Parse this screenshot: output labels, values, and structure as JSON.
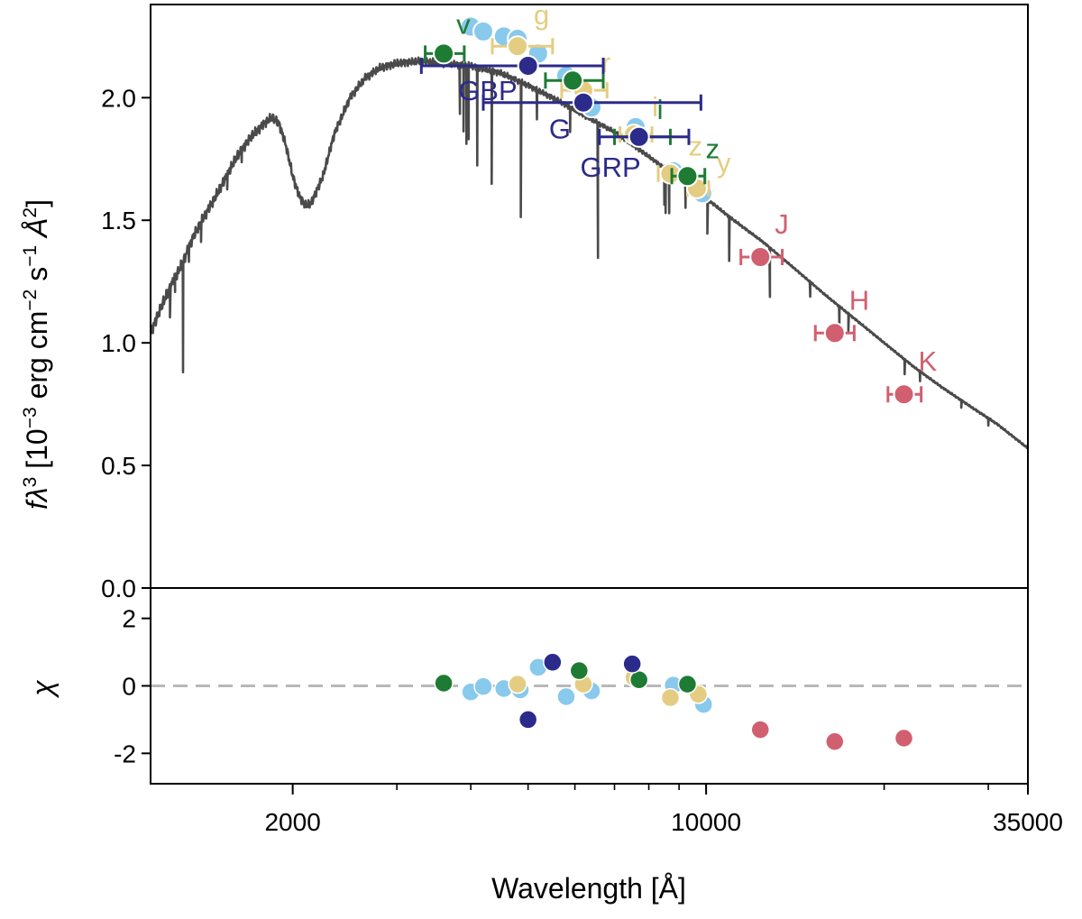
{
  "chart_data": [
    {
      "panel": "main",
      "type": "scatter",
      "ylabel_prefix": "fλ",
      "ylabel_exp": "3",
      "ylabel_mid1": " [10",
      "ylabel_exp2": "−3",
      "ylabel_mid2": " erg cm",
      "ylabel_exp3": "−2",
      "ylabel_mid3": " s",
      "ylabel_exp4": "−1",
      "ylabel_mid4": " Å",
      "ylabel_exp5": "2",
      "ylabel_end": "]",
      "xlabel": "",
      "xscale": "log",
      "xlim": [
        1150,
        35000
      ],
      "ylim": [
        0.0,
        2.38
      ],
      "yticks": [
        "0.0",
        "0.5",
        "1.0",
        "1.5",
        "2.0"
      ],
      "ytick_values": [
        0.0,
        0.5,
        1.0,
        1.5,
        2.0
      ],
      "model_spectrum": {
        "color": "#4a4a4a",
        "continuum": [
          [
            1150,
            1.04
          ],
          [
            1200,
            1.15
          ],
          [
            1260,
            1.26
          ],
          [
            1300,
            1.32
          ],
          [
            1350,
            1.42
          ],
          [
            1420,
            1.52
          ],
          [
            1500,
            1.62
          ],
          [
            1600,
            1.75
          ],
          [
            1700,
            1.84
          ],
          [
            1800,
            1.9
          ],
          [
            1850,
            1.92
          ],
          [
            1900,
            1.89
          ],
          [
            1950,
            1.8
          ],
          [
            2000,
            1.68
          ],
          [
            2050,
            1.6
          ],
          [
            2100,
            1.56
          ],
          [
            2150,
            1.57
          ],
          [
            2250,
            1.68
          ],
          [
            2350,
            1.85
          ],
          [
            2500,
            2.0
          ],
          [
            2650,
            2.08
          ],
          [
            2800,
            2.12
          ],
          [
            3000,
            2.14
          ],
          [
            3300,
            2.15
          ],
          [
            3600,
            2.14
          ],
          [
            4000,
            2.13
          ],
          [
            4500,
            2.1
          ],
          [
            5000,
            2.05
          ],
          [
            5600,
            1.99
          ],
          [
            6300,
            1.92
          ],
          [
            7000,
            1.86
          ],
          [
            8000,
            1.76
          ],
          [
            9000,
            1.67
          ],
          [
            10000,
            1.59
          ],
          [
            11000,
            1.51
          ],
          [
            12500,
            1.41
          ],
          [
            14000,
            1.31
          ],
          [
            16000,
            1.19
          ],
          [
            18000,
            1.09
          ],
          [
            20000,
            1.0
          ],
          [
            22500,
            0.9
          ],
          [
            25000,
            0.82
          ],
          [
            28000,
            0.74
          ],
          [
            31000,
            0.67
          ],
          [
            35000,
            0.57
          ]
        ],
        "absorption_lines": [
          [
            1240,
            0.12
          ],
          [
            1265,
            0.06
          ],
          [
            1305,
            0.45
          ],
          [
            1335,
            0.06
          ],
          [
            1400,
            0.08
          ],
          [
            1550,
            0.06
          ],
          [
            1640,
            0.05
          ],
          [
            3835,
            0.2
          ],
          [
            3889,
            0.27
          ],
          [
            3933,
            0.32
          ],
          [
            3968,
            0.3
          ],
          [
            4102,
            0.4
          ],
          [
            4340,
            0.46
          ],
          [
            4861,
            0.55
          ],
          [
            5175,
            0.12
          ],
          [
            5890,
            0.1
          ],
          [
            6563,
            0.55
          ],
          [
            8498,
            0.15
          ],
          [
            8542,
            0.18
          ],
          [
            8662,
            0.17
          ],
          [
            9230,
            0.1
          ],
          [
            10050,
            0.14
          ],
          [
            10940,
            0.18
          ],
          [
            12820,
            0.2
          ],
          [
            15000,
            0.06
          ],
          [
            16800,
            0.08
          ],
          [
            17400,
            0.07
          ],
          [
            21660,
            0.06
          ],
          [
            23000,
            0.04
          ],
          [
            27000,
            0.03
          ],
          [
            30000,
            0.03
          ]
        ]
      },
      "series": [
        {
          "color": "#88c9ec",
          "points": [
            {
              "x": 4000,
              "y": 2.29
            },
            {
              "x": 4200,
              "y": 2.27
            },
            {
              "x": 4550,
              "y": 2.25
            },
            {
              "x": 4800,
              "y": 2.24
            },
            {
              "x": 5200,
              "y": 2.18
            },
            {
              "x": 5800,
              "y": 2.09
            },
            {
              "x": 6400,
              "y": 1.96
            },
            {
              "x": 7600,
              "y": 1.88
            },
            {
              "x": 8800,
              "y": 1.7
            },
            {
              "x": 9850,
              "y": 1.61
            }
          ]
        },
        {
          "color": "#e4cd82",
          "points": [
            {
              "x": 4800,
              "y": 2.21,
              "xerr": [
                450,
                700
              ],
              "label": "g"
            },
            {
              "x": 6200,
              "y": 2.03,
              "xerr": [
                500,
                600
              ],
              "label": "r"
            },
            {
              "x": 7550,
              "y": 1.85,
              "xerr": [
                400,
                550
              ],
              "label": "i"
            },
            {
              "x": 8700,
              "y": 1.69,
              "xerr": [
                400,
                500
              ],
              "label": "z"
            },
            {
              "x": 9650,
              "y": 1.63,
              "xerr": [
                350,
                450
              ],
              "label": "y"
            }
          ]
        },
        {
          "color": "#1e7b34",
          "points": [
            {
              "x": 3600,
              "y": 2.18,
              "xerr": [
                250,
                300
              ],
              "label": "v"
            },
            {
              "x": 5950,
              "y": 2.07,
              "xerr": [
                600,
                750
              ]
            },
            {
              "x": 7700,
              "y": 1.84,
              "xerr": [
                700,
                1000
              ],
              "label": "i"
            },
            {
              "x": 9300,
              "y": 1.68,
              "xerr": [
                550,
                650
              ],
              "label": "z"
            }
          ]
        },
        {
          "color": "#2c2a8a",
          "points": [
            {
              "x": 5000,
              "y": 2.13,
              "xerr": [
                1700,
                1700
              ],
              "label": "GBP"
            },
            {
              "x": 6200,
              "y": 1.98,
              "xerr": [
                2000,
                3600
              ],
              "label": "G"
            },
            {
              "x": 7700,
              "y": 1.84,
              "xerr": [
                1100,
                1650
              ],
              "label": "GRP"
            }
          ]
        },
        {
          "color": "#d06070",
          "points": [
            {
              "x": 12350,
              "y": 1.35,
              "xerr": [
                900,
                1100
              ],
              "label": "J"
            },
            {
              "x": 16500,
              "y": 1.04,
              "xerr": [
                1200,
                1300
              ],
              "label": "H"
            },
            {
              "x": 21600,
              "y": 0.79,
              "xerr": [
                1300,
                1500
              ],
              "label": "K"
            }
          ]
        }
      ]
    },
    {
      "panel": "residuals",
      "type": "scatter",
      "ylabel": "χ",
      "xlabel": "Wavelength [Å]",
      "xscale": "log",
      "xlim": [
        1150,
        35000
      ],
      "ylim": [
        -2.9,
        2.9
      ],
      "yticks": [
        "2",
        "0",
        "-2"
      ],
      "ytick_values": [
        2,
        0,
        -2
      ],
      "xticks": [
        "2000",
        "10000",
        "35000"
      ],
      "xtick_values": [
        2000,
        10000,
        35000
      ],
      "zero_line": true,
      "series": [
        {
          "color": "#88c9ec",
          "points": [
            {
              "x": 4000,
              "y": -0.18
            },
            {
              "x": 4200,
              "y": -0.02
            },
            {
              "x": 4550,
              "y": -0.08
            },
            {
              "x": 4850,
              "y": -0.12
            },
            {
              "x": 5200,
              "y": 0.55
            },
            {
              "x": 5800,
              "y": -0.32
            },
            {
              "x": 6400,
              "y": -0.15
            },
            {
              "x": 7600,
              "y": 0.22
            },
            {
              "x": 8800,
              "y": 0.02
            },
            {
              "x": 9900,
              "y": -0.55
            }
          ]
        },
        {
          "color": "#e4cd82",
          "points": [
            {
              "x": 4800,
              "y": 0.05
            },
            {
              "x": 6200,
              "y": 0.05
            },
            {
              "x": 7550,
              "y": 0.25
            },
            {
              "x": 8700,
              "y": -0.35
            },
            {
              "x": 9700,
              "y": -0.25
            }
          ]
        },
        {
          "color": "#1e7b34",
          "points": [
            {
              "x": 3600,
              "y": 0.08
            },
            {
              "x": 6100,
              "y": 0.45
            },
            {
              "x": 7700,
              "y": 0.18
            },
            {
              "x": 9300,
              "y": 0.05
            }
          ]
        },
        {
          "color": "#2c2a8a",
          "points": [
            {
              "x": 5000,
              "y": -1.0
            },
            {
              "x": 5500,
              "y": 0.7
            },
            {
              "x": 7500,
              "y": 0.65
            }
          ]
        },
        {
          "color": "#d06070",
          "points": [
            {
              "x": 12350,
              "y": -1.3
            },
            {
              "x": 16500,
              "y": -1.65
            },
            {
              "x": 21600,
              "y": -1.55
            }
          ]
        }
      ]
    }
  ]
}
